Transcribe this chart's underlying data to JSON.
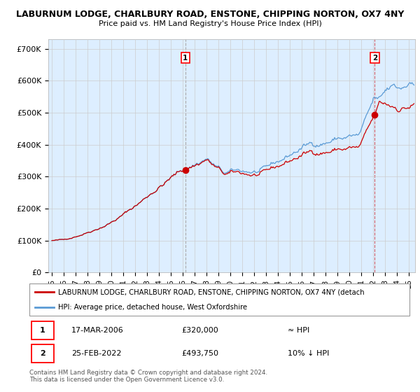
{
  "title_line1": "LABURNUM LODGE, CHARLBURY ROAD, ENSTONE, CHIPPING NORTON, OX7 4NY",
  "title_line2": "Price paid vs. HM Land Registry's House Price Index (HPI)",
  "ylabel_ticks": [
    "£0",
    "£100K",
    "£200K",
    "£300K",
    "£400K",
    "£500K",
    "£600K",
    "£700K"
  ],
  "ytick_values": [
    0,
    100000,
    200000,
    300000,
    400000,
    500000,
    600000,
    700000
  ],
  "ylim": [
    0,
    730000
  ],
  "xlim_start": 1994.7,
  "xlim_end": 2025.5,
  "hpi_color": "#5b9bd5",
  "price_color": "#cc0000",
  "fill_color": "#ddeeff",
  "marker1_year": 2006.21,
  "marker1_price": 320000,
  "marker2_year": 2022.12,
  "marker2_price": 493750,
  "legend_line1": "LABURNUM LODGE, CHARLBURY ROAD, ENSTONE, CHIPPING NORTON, OX7 4NY (detach",
  "legend_line2": "HPI: Average price, detached house, West Oxfordshire",
  "table_row1": [
    "1",
    "17-MAR-2006",
    "£320,000",
    "≈ HPI"
  ],
  "table_row2": [
    "2",
    "25-FEB-2022",
    "£493,750",
    "10% ↓ HPI"
  ],
  "footer": "Contains HM Land Registry data © Crown copyright and database right 2024.\nThis data is licensed under the Open Government Licence v3.0.",
  "background_color": "#ffffff",
  "grid_color": "#cccccc"
}
